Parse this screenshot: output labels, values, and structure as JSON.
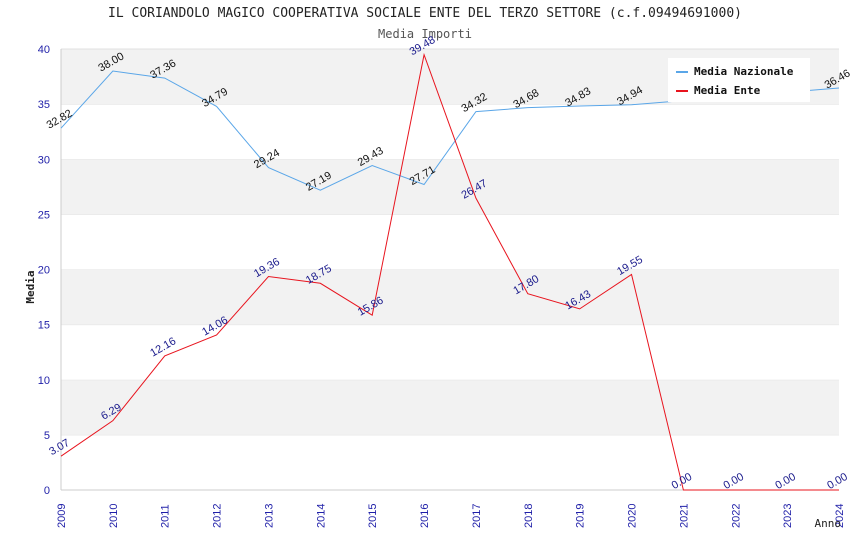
{
  "chart_data": {
    "type": "line",
    "title": "IL CORIANDOLO MAGICO COOPERATIVA SOCIALE ENTE DEL TERZO SETTORE (c.f.09494691000)",
    "subtitle": "Media Importi",
    "xlabel": "Anno",
    "ylabel": "Media",
    "ylim": [
      0,
      40
    ],
    "yticks": [
      0,
      5,
      10,
      15,
      20,
      25,
      30,
      35,
      40
    ],
    "grid": true,
    "legend_position": "top-right",
    "categories": [
      "2009",
      "2010",
      "2011",
      "2012",
      "2013",
      "2014",
      "2015",
      "2016",
      "2017",
      "2018",
      "2019",
      "2020",
      "2021",
      "2022",
      "2023",
      "2024"
    ],
    "series": [
      {
        "name": "Media Nazionale",
        "color": "#5aa6e8",
        "values": [
          32.82,
          38.0,
          37.36,
          34.79,
          29.24,
          27.19,
          29.43,
          27.71,
          34.32,
          34.68,
          34.83,
          34.94,
          null,
          null,
          null,
          36.46
        ],
        "labels": [
          "32.82",
          "38.00",
          "37.36",
          "34.79",
          "29.24",
          "27.19",
          "29.43",
          "27.71",
          "34.32",
          "34.68",
          "34.83",
          "34.94",
          "",
          "",
          "",
          "36.46"
        ]
      },
      {
        "name": "Media Ente",
        "color": "#e8141e",
        "values": [
          3.07,
          6.29,
          12.16,
          14.06,
          19.36,
          18.75,
          15.86,
          39.48,
          26.47,
          17.8,
          16.43,
          19.55,
          0.0,
          0.0,
          0.0,
          0.0
        ],
        "labels": [
          "3.07",
          "6.29",
          "12.16",
          "14.06",
          "19.36",
          "18.75",
          "15.86",
          "39.48",
          "26.47",
          "17.80",
          "16.43",
          "19.55",
          "0.00",
          "0.00",
          "0.00",
          "0.00"
        ]
      }
    ]
  }
}
